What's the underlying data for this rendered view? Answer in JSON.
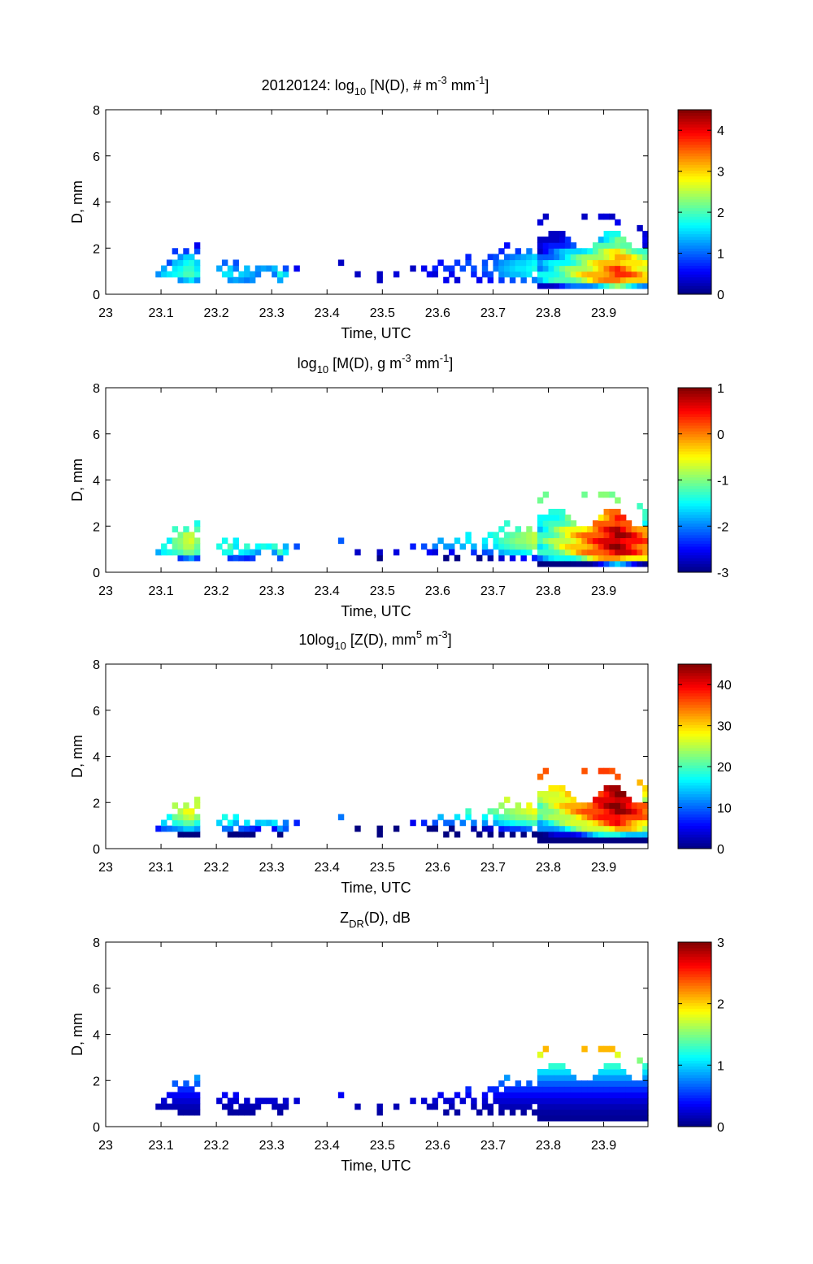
{
  "figure": {
    "date": "20120124",
    "background": "#ffffff"
  },
  "chart_data": [
    {
      "type": "heatmap",
      "title": {
        "prefix": "20120124: log",
        "sub": "10",
        "mid1": " [N(D), # m",
        "sup1": "-3",
        "mid2": " mm",
        "sup2": "-1",
        "end": "]"
      },
      "xlabel": "Time, UTC",
      "ylabel": "D, mm",
      "xlim": [
        23,
        23.98
      ],
      "ylim": [
        0,
        8
      ],
      "xticks": [
        "23",
        "23.1",
        "23.2",
        "23.3",
        "23.4",
        "23.5",
        "23.6",
        "23.7",
        "23.8",
        "23.9"
      ],
      "yticks": [
        "0",
        "2",
        "4",
        "6",
        "8"
      ],
      "colorbar": {
        "range": [
          0,
          4.5
        ],
        "ticks": [
          "0",
          "1",
          "2",
          "3",
          "4"
        ]
      },
      "cells": [
        [
          23.09,
          0.75,
          1.2
        ],
        [
          23.1,
          0.75,
          1.5
        ],
        [
          23.1,
          1.0,
          1.3
        ],
        [
          23.11,
          0.75,
          1.6
        ],
        [
          23.11,
          1.25,
          0.9
        ],
        [
          23.12,
          0.75,
          1.7
        ],
        [
          23.12,
          1.0,
          1.6
        ],
        [
          23.12,
          1.25,
          1.4
        ],
        [
          23.12,
          1.75,
          0.8
        ],
        [
          23.13,
          0.5,
          1.2
        ],
        [
          23.13,
          0.75,
          1.8
        ],
        [
          23.13,
          1.0,
          1.7
        ],
        [
          23.13,
          1.25,
          1.5
        ],
        [
          23.13,
          1.5,
          1.2
        ],
        [
          23.14,
          0.5,
          1.4
        ],
        [
          23.14,
          0.75,
          2.0
        ],
        [
          23.14,
          1.0,
          1.9
        ],
        [
          23.14,
          1.25,
          1.7
        ],
        [
          23.14,
          1.5,
          1.5
        ],
        [
          23.14,
          1.75,
          0.8
        ],
        [
          23.15,
          0.5,
          1.6
        ],
        [
          23.15,
          0.75,
          2.0
        ],
        [
          23.15,
          1.0,
          1.9
        ],
        [
          23.15,
          1.25,
          1.8
        ],
        [
          23.15,
          1.5,
          1.5
        ],
        [
          23.16,
          0.5,
          1.2
        ],
        [
          23.16,
          0.75,
          1.8
        ],
        [
          23.16,
          1.0,
          1.6
        ],
        [
          23.16,
          1.25,
          1.5
        ],
        [
          23.16,
          1.75,
          0.9
        ],
        [
          23.16,
          2.0,
          0.5
        ],
        [
          23.2,
          1.0,
          1.3
        ],
        [
          23.21,
          0.75,
          1.6
        ],
        [
          23.21,
          1.25,
          1.0
        ],
        [
          23.22,
          0.5,
          1.2
        ],
        [
          23.22,
          0.75,
          1.6
        ],
        [
          23.22,
          1.0,
          1.5
        ],
        [
          23.23,
          0.5,
          1.3
        ],
        [
          23.23,
          1.0,
          1.1
        ],
        [
          23.23,
          1.25,
          0.9
        ],
        [
          23.24,
          0.5,
          1.2
        ],
        [
          23.24,
          0.75,
          1.5
        ],
        [
          23.25,
          0.5,
          1.1
        ],
        [
          23.25,
          0.75,
          1.4
        ],
        [
          23.25,
          1.0,
          1.4
        ],
        [
          23.26,
          0.5,
          1.2
        ],
        [
          23.26,
          0.75,
          1.3
        ],
        [
          23.27,
          0.75,
          1.1
        ],
        [
          23.27,
          1.0,
          1.2
        ],
        [
          23.28,
          1.0,
          1.3
        ],
        [
          23.29,
          1.0,
          1.2
        ],
        [
          23.3,
          0.75,
          1.1
        ],
        [
          23.3,
          1.0,
          1.4
        ],
        [
          23.31,
          0.5,
          1.3
        ],
        [
          23.31,
          0.75,
          1.8
        ],
        [
          23.32,
          0.75,
          1.5
        ],
        [
          23.32,
          1.0,
          0.9
        ],
        [
          23.34,
          1.0,
          0.5
        ],
        [
          23.42,
          1.25,
          0.3
        ],
        [
          23.45,
          0.75,
          0.3
        ],
        [
          23.49,
          0.5,
          0.3
        ],
        [
          23.49,
          0.75,
          0.3
        ],
        [
          23.52,
          0.75,
          0.4
        ],
        [
          23.55,
          1.0,
          0.3
        ],
        [
          23.57,
          1.0,
          0.5
        ],
        [
          23.58,
          0.75,
          0.5
        ],
        [
          23.59,
          1.0,
          0.7
        ],
        [
          23.59,
          0.75,
          0.4
        ],
        [
          23.6,
          1.25,
          0.6
        ],
        [
          23.61,
          0.5,
          0.5
        ],
        [
          23.61,
          1.0,
          0.8
        ],
        [
          23.62,
          1.0,
          0.8
        ],
        [
          23.62,
          0.75,
          0.5
        ],
        [
          23.63,
          1.25,
          0.8
        ],
        [
          23.63,
          0.5,
          0.4
        ],
        [
          23.64,
          1.0,
          0.9
        ],
        [
          23.65,
          1.25,
          0.9
        ],
        [
          23.65,
          1.5,
          0.7
        ],
        [
          23.66,
          0.75,
          0.7
        ],
        [
          23.66,
          1.0,
          0.9
        ],
        [
          23.67,
          0.5,
          0.5
        ],
        [
          23.68,
          0.75,
          0.8
        ],
        [
          23.68,
          1.0,
          1.0
        ],
        [
          23.68,
          1.25,
          0.9
        ],
        [
          23.69,
          0.5,
          0.6
        ],
        [
          23.69,
          0.75,
          0.9
        ],
        [
          23.69,
          1.5,
          0.8
        ],
        [
          23.7,
          1.0,
          1.1
        ],
        [
          23.7,
          1.25,
          1.0
        ],
        [
          23.7,
          1.5,
          0.9
        ],
        [
          23.71,
          0.5,
          0.8
        ],
        [
          23.71,
          0.75,
          1.2
        ],
        [
          23.71,
          1.0,
          1.3
        ],
        [
          23.71,
          1.25,
          1.2
        ],
        [
          23.71,
          1.75,
          0.7
        ],
        [
          23.72,
          0.75,
          1.3
        ],
        [
          23.72,
          1.0,
          1.4
        ],
        [
          23.72,
          1.25,
          1.3
        ],
        [
          23.72,
          1.5,
          1.0
        ],
        [
          23.72,
          2.0,
          0.6
        ],
        [
          23.73,
          0.5,
          0.9
        ],
        [
          23.73,
          0.75,
          1.4
        ],
        [
          23.73,
          1.0,
          1.5
        ],
        [
          23.73,
          1.25,
          1.4
        ],
        [
          23.73,
          1.5,
          1.1
        ],
        [
          23.74,
          0.75,
          1.4
        ],
        [
          23.74,
          1.0,
          1.6
        ],
        [
          23.74,
          1.25,
          1.5
        ],
        [
          23.74,
          1.5,
          1.2
        ],
        [
          23.74,
          1.75,
          0.8
        ],
        [
          23.75,
          0.5,
          1.0
        ],
        [
          23.75,
          0.75,
          1.5
        ],
        [
          23.75,
          1.0,
          1.6
        ],
        [
          23.75,
          1.25,
          1.5
        ],
        [
          23.75,
          1.5,
          1.3
        ],
        [
          23.76,
          0.75,
          1.6
        ],
        [
          23.76,
          1.0,
          1.7
        ],
        [
          23.76,
          1.25,
          1.6
        ],
        [
          23.76,
          1.5,
          1.4
        ],
        [
          23.76,
          1.75,
          1.1
        ],
        [
          23.77,
          0.5,
          1.1
        ],
        [
          23.77,
          1.0,
          1.8
        ],
        [
          23.77,
          1.25,
          1.7
        ],
        [
          23.77,
          1.5,
          1.5
        ],
        [
          23.78,
          3.0,
          0.4
        ],
        [
          23.79,
          3.25,
          0.3
        ],
        [
          23.86,
          3.25,
          0.3
        ],
        [
          23.89,
          3.25,
          0.4
        ],
        [
          23.9,
          3.25,
          0.4
        ],
        [
          23.91,
          3.25,
          0.3
        ],
        [
          23.92,
          3.0,
          0.5
        ],
        [
          23.96,
          2.75,
          0.3
        ],
        [
          23.97,
          2.0,
          0.4
        ],
        [
          23.97,
          2.25,
          0.5
        ],
        [
          23.97,
          2.5,
          0.4
        ]
      ],
      "dense_block": {
        "t_start": 23.78,
        "t_end": 23.98,
        "d_min": 0.25,
        "d_max": 2.75,
        "peak": 3.8,
        "peak_time": 23.92,
        "peak_d": 0.75
      }
    },
    {
      "type": "heatmap",
      "title": {
        "prefix": "log",
        "sub": "10",
        "mid1": " [M(D), g m",
        "sup1": "-3",
        "mid2": " mm",
        "sup2": "-1",
        "end": "]"
      },
      "xlabel": "Time, UTC",
      "ylabel": "D, mm",
      "xlim": [
        23,
        23.98
      ],
      "ylim": [
        0,
        8
      ],
      "xticks": [
        "23",
        "23.1",
        "23.2",
        "23.3",
        "23.4",
        "23.5",
        "23.6",
        "23.7",
        "23.8",
        "23.9"
      ],
      "yticks": [
        "0",
        "2",
        "4",
        "6",
        "8"
      ],
      "colorbar": {
        "range": [
          -3,
          1
        ],
        "ticks": [
          "1",
          "0",
          "-1",
          "-2",
          "-3"
        ]
      },
      "variable": "M"
    },
    {
      "type": "heatmap",
      "title": {
        "prefix": "10log",
        "sub": "10",
        "mid1": " [Z(D),  mm",
        "sup1": "5",
        "mid2": " m",
        "sup2": "-3",
        "end": "]"
      },
      "xlabel": "Time, UTC",
      "ylabel": "D, mm",
      "xlim": [
        23,
        23.98
      ],
      "ylim": [
        0,
        8
      ],
      "xticks": [
        "23",
        "23.1",
        "23.2",
        "23.3",
        "23.4",
        "23.5",
        "23.6",
        "23.7",
        "23.8",
        "23.9"
      ],
      "yticks": [
        "0",
        "2",
        "4",
        "6",
        "8"
      ],
      "colorbar": {
        "range": [
          0,
          45
        ],
        "ticks": [
          "40",
          "30",
          "20",
          "10",
          "0"
        ]
      },
      "variable": "Z"
    },
    {
      "type": "heatmap",
      "title": {
        "prefix": "Z",
        "sub": "DR",
        "mid1": "(D), dB",
        "sup1": "",
        "mid2": "",
        "sup2": "",
        "end": ""
      },
      "xlabel": "Time, UTC",
      "ylabel": "D, mm",
      "xlim": [
        23,
        23.98
      ],
      "ylim": [
        0,
        8
      ],
      "xticks": [
        "23",
        "23.1",
        "23.2",
        "23.3",
        "23.4",
        "23.5",
        "23.6",
        "23.7",
        "23.8",
        "23.9"
      ],
      "yticks": [
        "0",
        "2",
        "4",
        "6",
        "8"
      ],
      "colorbar": {
        "range": [
          0,
          3
        ],
        "ticks": [
          "3",
          "2",
          "1",
          "0"
        ]
      },
      "variable": "ZDR"
    }
  ]
}
